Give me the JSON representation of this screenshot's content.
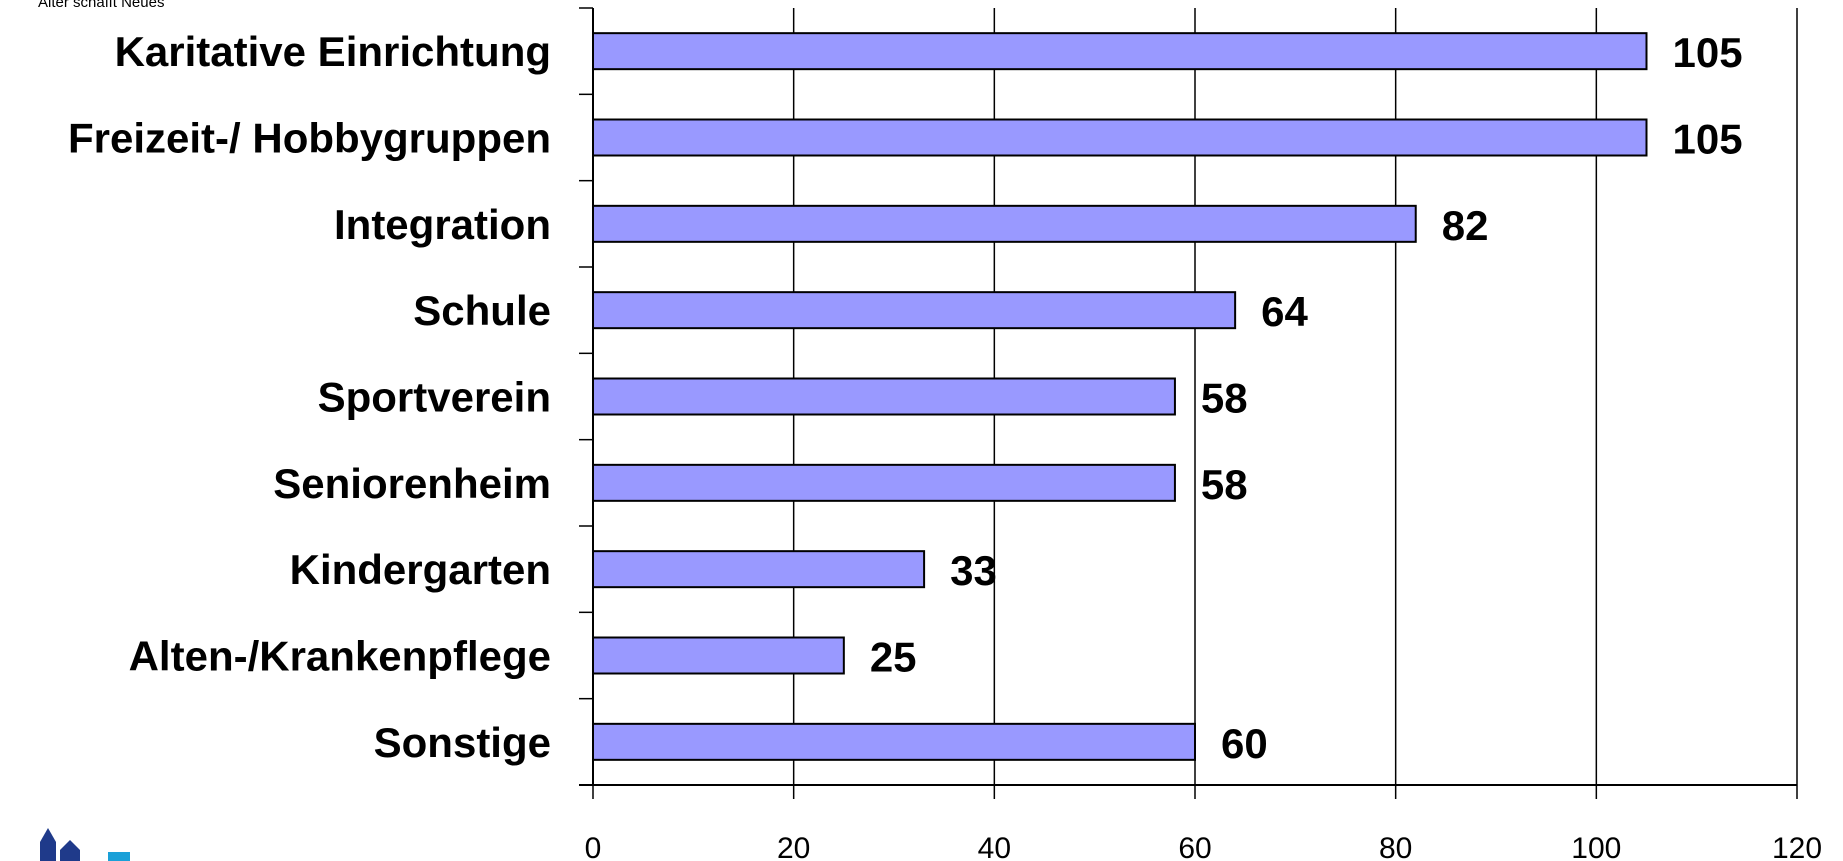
{
  "brand": {
    "tagline": "Alter schafft Neues"
  },
  "colors": {
    "bar_fill": "#9999ff",
    "bar_stroke": "#000000",
    "grid": "#000000",
    "brand_text": "#1aa0d8",
    "logo": "#1f3a8a"
  },
  "chart_data": {
    "type": "bar",
    "orientation": "horizontal",
    "categories": [
      "Karitative Einrichtung",
      "Freizeit-/ Hobbygruppen",
      "Integration",
      "Schule",
      "Sportverein",
      "Seniorenheim",
      "Kindergarten",
      "Alten-/Krankenpflege",
      "Sonstige"
    ],
    "values": [
      105,
      105,
      82,
      64,
      58,
      58,
      33,
      25,
      60
    ],
    "xlim": [
      0,
      120
    ],
    "x_ticks": [
      0,
      20,
      40,
      60,
      80,
      100,
      120
    ],
    "title": "",
    "xlabel": "",
    "ylabel": "",
    "grid": "vertical",
    "data_labels": true,
    "legend": "none"
  }
}
